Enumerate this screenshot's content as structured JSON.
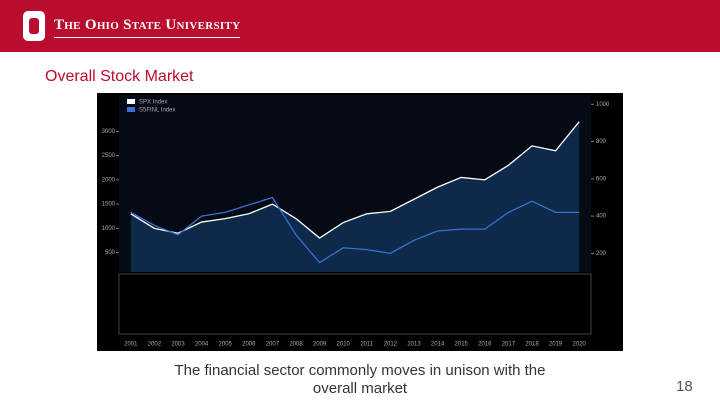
{
  "header": {
    "university": "The Ohio State University"
  },
  "slide": {
    "title": "Overall Stock Market",
    "caption": [
      "The financial sector commonly moves in unison with the",
      "overall market"
    ],
    "page_number": "18"
  },
  "chart_data": {
    "type": "line",
    "categories": [
      "2001",
      "2002",
      "2003",
      "2004",
      "2005",
      "2006",
      "2007",
      "2008",
      "2009",
      "2010",
      "2011",
      "2012",
      "2013",
      "2014",
      "2015",
      "2016",
      "2017",
      "2018",
      "2019",
      "2020"
    ],
    "series": [
      {
        "name": "SPX Index",
        "color": "#ffffff",
        "values": [
          1300,
          1000,
          900,
          1130,
          1200,
          1300,
          1500,
          1200,
          800,
          1120,
          1300,
          1350,
          1600,
          1850,
          2050,
          2000,
          2300,
          2700,
          2600,
          3200
        ]
      },
      {
        "name": "S5FINL Index",
        "color": "#3a6fd8",
        "axis": "y2",
        "values": [
          420,
          350,
          300,
          400,
          420,
          460,
          500,
          300,
          150,
          230,
          220,
          200,
          270,
          320,
          330,
          330,
          420,
          480,
          420,
          420
        ]
      }
    ],
    "ylim": [
      100,
      3750
    ],
    "yticks": [
      500,
      1000,
      1500,
      2000,
      2500,
      3000
    ],
    "y2lim": [
      100,
      1050
    ],
    "y2ticks": [
      200,
      400,
      600,
      800,
      1000
    ]
  }
}
